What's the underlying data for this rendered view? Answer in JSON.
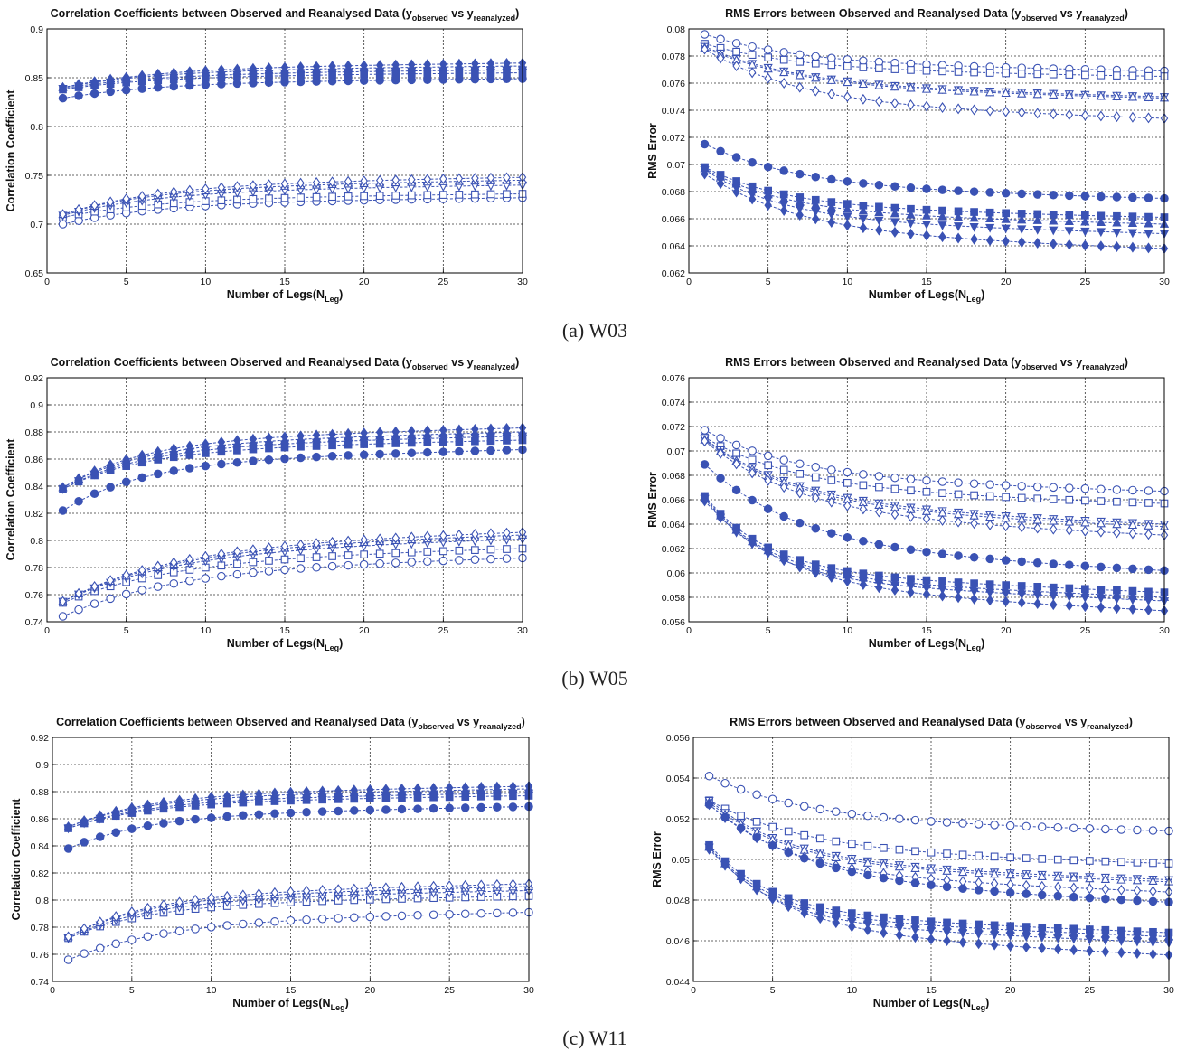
{
  "figure_captions": [
    "(a)  W03",
    "(b)  W05",
    "(c)  W11"
  ],
  "chart_data": [
    {
      "type": "line",
      "row": 0,
      "col": 0,
      "title_main": "Correlation Coefficients between Observed and Reanalysed Data (y",
      "title_sub1": "observed",
      "title_mid": " vs y",
      "title_sub2": "reanalyzed",
      "title_end": ")",
      "xlabel_main": "Number of Legs(N",
      "xlabel_sub": "Leg",
      "xlabel_end": ")",
      "ylabel": "Correlation Coefficient",
      "xlim": [
        0,
        30
      ],
      "ylim": [
        0.65,
        0.9
      ],
      "xticks": [
        0,
        5,
        10,
        15,
        20,
        25,
        30
      ],
      "yticks": [
        0.65,
        0.7,
        0.75,
        0.8,
        0.85,
        0.9
      ],
      "ytick_labels": [
        "0.65",
        "0.7",
        "0.75",
        "0.8",
        "0.85",
        "0.9"
      ],
      "series": [
        {
          "marker": "circle",
          "filled": true,
          "start": 0.829,
          "end": 0.849,
          "tau": 6
        },
        {
          "marker": "square",
          "filled": true,
          "start": 0.838,
          "end": 0.855,
          "tau": 6
        },
        {
          "marker": "triangle-down",
          "filled": true,
          "start": 0.839,
          "end": 0.858,
          "tau": 6
        },
        {
          "marker": "triangle-up",
          "filled": true,
          "start": 0.84,
          "end": 0.862,
          "tau": 6
        },
        {
          "marker": "diamond",
          "filled": true,
          "start": 0.84,
          "end": 0.865,
          "tau": 6
        },
        {
          "marker": "circle",
          "filled": false,
          "start": 0.7,
          "end": 0.727,
          "tau": 6
        },
        {
          "marker": "square",
          "filled": false,
          "start": 0.707,
          "end": 0.731,
          "tau": 6
        },
        {
          "marker": "triangle-down",
          "filled": false,
          "start": 0.709,
          "end": 0.74,
          "tau": 6
        },
        {
          "marker": "triangle-up",
          "filled": false,
          "start": 0.71,
          "end": 0.745,
          "tau": 6
        },
        {
          "marker": "diamond",
          "filled": false,
          "start": 0.71,
          "end": 0.748,
          "tau": 6
        }
      ]
    },
    {
      "type": "line",
      "row": 0,
      "col": 1,
      "title_main": "RMS Errors between Observed and Reanalysed Data (y",
      "title_sub1": "observed",
      "title_mid": " vs y",
      "title_sub2": "reanalyzed",
      "title_end": ")",
      "xlabel_main": "Number of Legs(N",
      "xlabel_sub": "Leg",
      "xlabel_end": ")",
      "ylabel": "RMS Error",
      "xlim": [
        0,
        30
      ],
      "ylim": [
        0.062,
        0.08
      ],
      "xticks": [
        0,
        5,
        10,
        15,
        20,
        25,
        30
      ],
      "yticks": [
        0.062,
        0.064,
        0.066,
        0.068,
        0.07,
        0.072,
        0.074,
        0.076,
        0.078,
        0.08
      ],
      "ytick_labels": [
        "0.062",
        "0.064",
        "0.066",
        "0.068",
        "0.07",
        "0.072",
        "0.074",
        "0.076",
        "0.078",
        "0.08"
      ],
      "series": [
        {
          "marker": "circle",
          "filled": false,
          "start": 0.0796,
          "end": 0.0769,
          "tau": 6
        },
        {
          "marker": "square",
          "filled": false,
          "start": 0.0789,
          "end": 0.0765,
          "tau": 6
        },
        {
          "marker": "triangle-down",
          "filled": false,
          "start": 0.0787,
          "end": 0.075,
          "tau": 6
        },
        {
          "marker": "triangle-up",
          "filled": false,
          "start": 0.0786,
          "end": 0.0749,
          "tau": 6
        },
        {
          "marker": "diamond",
          "filled": false,
          "start": 0.0785,
          "end": 0.0734,
          "tau": 6
        },
        {
          "marker": "circle",
          "filled": true,
          "start": 0.0715,
          "end": 0.0675,
          "tau": 6
        },
        {
          "marker": "square",
          "filled": true,
          "start": 0.0698,
          "end": 0.0661,
          "tau": 5
        },
        {
          "marker": "triangle-up",
          "filled": true,
          "start": 0.0697,
          "end": 0.0656,
          "tau": 5
        },
        {
          "marker": "triangle-down",
          "filled": true,
          "start": 0.0696,
          "end": 0.0649,
          "tau": 5
        },
        {
          "marker": "diamond",
          "filled": true,
          "start": 0.0693,
          "end": 0.0638,
          "tau": 6
        }
      ]
    },
    {
      "type": "line",
      "row": 1,
      "col": 0,
      "title_main": "Correlation Coefficients between Observed and Reanalysed Data (y",
      "title_sub1": "observed",
      "title_mid": " vs y",
      "title_sub2": "reanalyzed",
      "title_end": ")",
      "xlabel_main": "Number of Legs(N",
      "xlabel_sub": "Leg",
      "xlabel_end": ")",
      "ylabel": "Correlation Coefficient",
      "xlim": [
        0,
        30
      ],
      "ylim": [
        0.74,
        0.92
      ],
      "xticks": [
        0,
        5,
        10,
        15,
        20,
        25,
        30
      ],
      "yticks": [
        0.74,
        0.76,
        0.78,
        0.8,
        0.82,
        0.84,
        0.86,
        0.88,
        0.9,
        0.92
      ],
      "ytick_labels": [
        "0.74",
        "0.76",
        "0.78",
        "0.8",
        "0.82",
        "0.84",
        "0.86",
        "0.88",
        "0.9",
        "0.92"
      ],
      "series": [
        {
          "marker": "circle",
          "filled": true,
          "start": 0.822,
          "end": 0.867,
          "tau": 5
        },
        {
          "marker": "square",
          "filled": true,
          "start": 0.838,
          "end": 0.874,
          "tau": 5
        },
        {
          "marker": "triangle-down",
          "filled": true,
          "start": 0.838,
          "end": 0.877,
          "tau": 5
        },
        {
          "marker": "triangle-up",
          "filled": true,
          "start": 0.839,
          "end": 0.88,
          "tau": 5
        },
        {
          "marker": "diamond",
          "filled": true,
          "start": 0.839,
          "end": 0.883,
          "tau": 5
        },
        {
          "marker": "circle",
          "filled": false,
          "start": 0.744,
          "end": 0.787,
          "tau": 7
        },
        {
          "marker": "square",
          "filled": false,
          "start": 0.754,
          "end": 0.794,
          "tau": 7
        },
        {
          "marker": "triangle-down",
          "filled": false,
          "start": 0.755,
          "end": 0.801,
          "tau": 7
        },
        {
          "marker": "triangle-up",
          "filled": false,
          "start": 0.755,
          "end": 0.804,
          "tau": 7
        },
        {
          "marker": "diamond",
          "filled": false,
          "start": 0.755,
          "end": 0.806,
          "tau": 7
        }
      ]
    },
    {
      "type": "line",
      "row": 1,
      "col": 1,
      "title_main": "RMS Errors between Observed and Reanalysed Data (y",
      "title_sub1": "observed",
      "title_mid": " vs y",
      "title_sub2": "reanalyzed",
      "title_end": ")",
      "xlabel_main": "Number of Legs(N",
      "xlabel_sub": "Leg",
      "xlabel_end": ")",
      "ylabel": "RMS Error",
      "xlim": [
        0,
        30
      ],
      "ylim": [
        0.056,
        0.076
      ],
      "xticks": [
        0,
        5,
        10,
        15,
        20,
        25,
        30
      ],
      "yticks": [
        0.056,
        0.058,
        0.06,
        0.062,
        0.064,
        0.066,
        0.068,
        0.07,
        0.072,
        0.074,
        0.076
      ],
      "ytick_labels": [
        "0.056",
        "0.058",
        "0.06",
        "0.062",
        "0.064",
        "0.066",
        "0.068",
        "0.07",
        "0.072",
        "0.074",
        "0.076"
      ],
      "series": [
        {
          "marker": "circle",
          "filled": false,
          "start": 0.0717,
          "end": 0.0667,
          "tau": 6
        },
        {
          "marker": "square",
          "filled": false,
          "start": 0.0711,
          "end": 0.0657,
          "tau": 6
        },
        {
          "marker": "triangle-down",
          "filled": false,
          "start": 0.071,
          "end": 0.064,
          "tau": 6
        },
        {
          "marker": "triangle-up",
          "filled": false,
          "start": 0.0709,
          "end": 0.0638,
          "tau": 6
        },
        {
          "marker": "diamond",
          "filled": false,
          "start": 0.0708,
          "end": 0.0631,
          "tau": 6
        },
        {
          "marker": "circle",
          "filled": true,
          "start": 0.0689,
          "end": 0.0602,
          "tau": 6
        },
        {
          "marker": "square",
          "filled": true,
          "start": 0.0663,
          "end": 0.0584,
          "tau": 4
        },
        {
          "marker": "triangle-up",
          "filled": true,
          "start": 0.0662,
          "end": 0.058,
          "tau": 4
        },
        {
          "marker": "triangle-down",
          "filled": true,
          "start": 0.0661,
          "end": 0.0577,
          "tau": 4
        },
        {
          "marker": "diamond",
          "filled": true,
          "start": 0.0659,
          "end": 0.0569,
          "tau": 5
        }
      ]
    },
    {
      "type": "line",
      "row": 2,
      "col": 0,
      "title_main": "Correlation Coefficients between Observed and Reanalysed Data (y",
      "title_sub1": "observed",
      "title_mid": " vs y",
      "title_sub2": "reanalyzed",
      "title_end": ")",
      "xlabel_main": "Number of Legs(N",
      "xlabel_sub": "Leg",
      "xlabel_end": ")",
      "ylabel": "Correlation Coefficient",
      "xlim": [
        0,
        30
      ],
      "ylim": [
        0.74,
        0.92
      ],
      "xticks": [
        0,
        5,
        10,
        15,
        20,
        25,
        30
      ],
      "yticks": [
        0.74,
        0.76,
        0.78,
        0.8,
        0.82,
        0.84,
        0.86,
        0.88,
        0.9,
        0.92
      ],
      "ytick_labels": [
        "0.74",
        "0.76",
        "0.78",
        "0.8",
        "0.82",
        "0.84",
        "0.86",
        "0.88",
        "0.9",
        "0.92"
      ],
      "series": [
        {
          "marker": "circle",
          "filled": true,
          "start": 0.838,
          "end": 0.869,
          "tau": 5
        },
        {
          "marker": "square",
          "filled": true,
          "start": 0.853,
          "end": 0.877,
          "tau": 5
        },
        {
          "marker": "triangle-down",
          "filled": true,
          "start": 0.853,
          "end": 0.879,
          "tau": 5
        },
        {
          "marker": "triangle-up",
          "filled": true,
          "start": 0.854,
          "end": 0.882,
          "tau": 5
        },
        {
          "marker": "diamond",
          "filled": true,
          "start": 0.854,
          "end": 0.884,
          "tau": 5
        },
        {
          "marker": "circle",
          "filled": false,
          "start": 0.756,
          "end": 0.791,
          "tau": 6
        },
        {
          "marker": "square",
          "filled": false,
          "start": 0.772,
          "end": 0.803,
          "tau": 5
        },
        {
          "marker": "triangle-down",
          "filled": false,
          "start": 0.772,
          "end": 0.807,
          "tau": 5
        },
        {
          "marker": "triangle-up",
          "filled": false,
          "start": 0.773,
          "end": 0.81,
          "tau": 5
        },
        {
          "marker": "diamond",
          "filled": false,
          "start": 0.773,
          "end": 0.812,
          "tau": 5
        }
      ]
    },
    {
      "type": "line",
      "row": 2,
      "col": 1,
      "title_main": "RMS Errors between Observed and Reanalysed Data (y",
      "title_sub1": "observed",
      "title_mid": " vs y",
      "title_sub2": "reanalyzed",
      "title_end": ")",
      "xlabel_main": "Number of Legs(N",
      "xlabel_sub": "Leg",
      "xlabel_end": ")",
      "ylabel": "RMS Error",
      "xlim": [
        0,
        30
      ],
      "ylim": [
        0.044,
        0.056
      ],
      "xticks": [
        0,
        5,
        10,
        15,
        20,
        25,
        30
      ],
      "yticks": [
        0.044,
        0.046,
        0.048,
        0.05,
        0.052,
        0.054,
        0.056
      ],
      "ytick_labels": [
        "0.044",
        "0.046",
        "0.048",
        "0.05",
        "0.052",
        "0.054",
        "0.056"
      ],
      "series": [
        {
          "marker": "circle",
          "filled": false,
          "start": 0.0541,
          "end": 0.0514,
          "tau": 6
        },
        {
          "marker": "square",
          "filled": false,
          "start": 0.0529,
          "end": 0.0498,
          "tau": 6
        },
        {
          "marker": "triangle-down",
          "filled": false,
          "start": 0.0529,
          "end": 0.049,
          "tau": 5
        },
        {
          "marker": "triangle-up",
          "filled": false,
          "start": 0.0528,
          "end": 0.0489,
          "tau": 5
        },
        {
          "marker": "diamond",
          "filled": false,
          "start": 0.0527,
          "end": 0.0484,
          "tau": 5
        },
        {
          "marker": "circle",
          "filled": true,
          "start": 0.0527,
          "end": 0.0479,
          "tau": 6
        },
        {
          "marker": "square",
          "filled": true,
          "start": 0.0507,
          "end": 0.0464,
          "tau": 4
        },
        {
          "marker": "triangle-up",
          "filled": true,
          "start": 0.0506,
          "end": 0.0462,
          "tau": 4
        },
        {
          "marker": "triangle-down",
          "filled": true,
          "start": 0.0506,
          "end": 0.0459,
          "tau": 4
        },
        {
          "marker": "diamond",
          "filled": true,
          "start": 0.0505,
          "end": 0.0453,
          "tau": 5
        }
      ]
    }
  ],
  "colors": {
    "series": "#3a52b4",
    "grid": "#333333",
    "axis": "#000000"
  }
}
